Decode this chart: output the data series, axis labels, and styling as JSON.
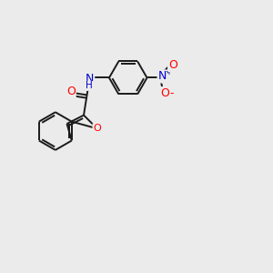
{
  "bg_color": "#ebebeb",
  "bond_color": "#1a1a1a",
  "oxygen_color": "#ff0000",
  "nitrogen_color": "#0000cd",
  "lw": 1.4,
  "figsize": [
    3.0,
    3.0
  ],
  "dpi": 100,
  "xlim": [
    0,
    10
  ],
  "ylim": [
    0,
    10
  ]
}
